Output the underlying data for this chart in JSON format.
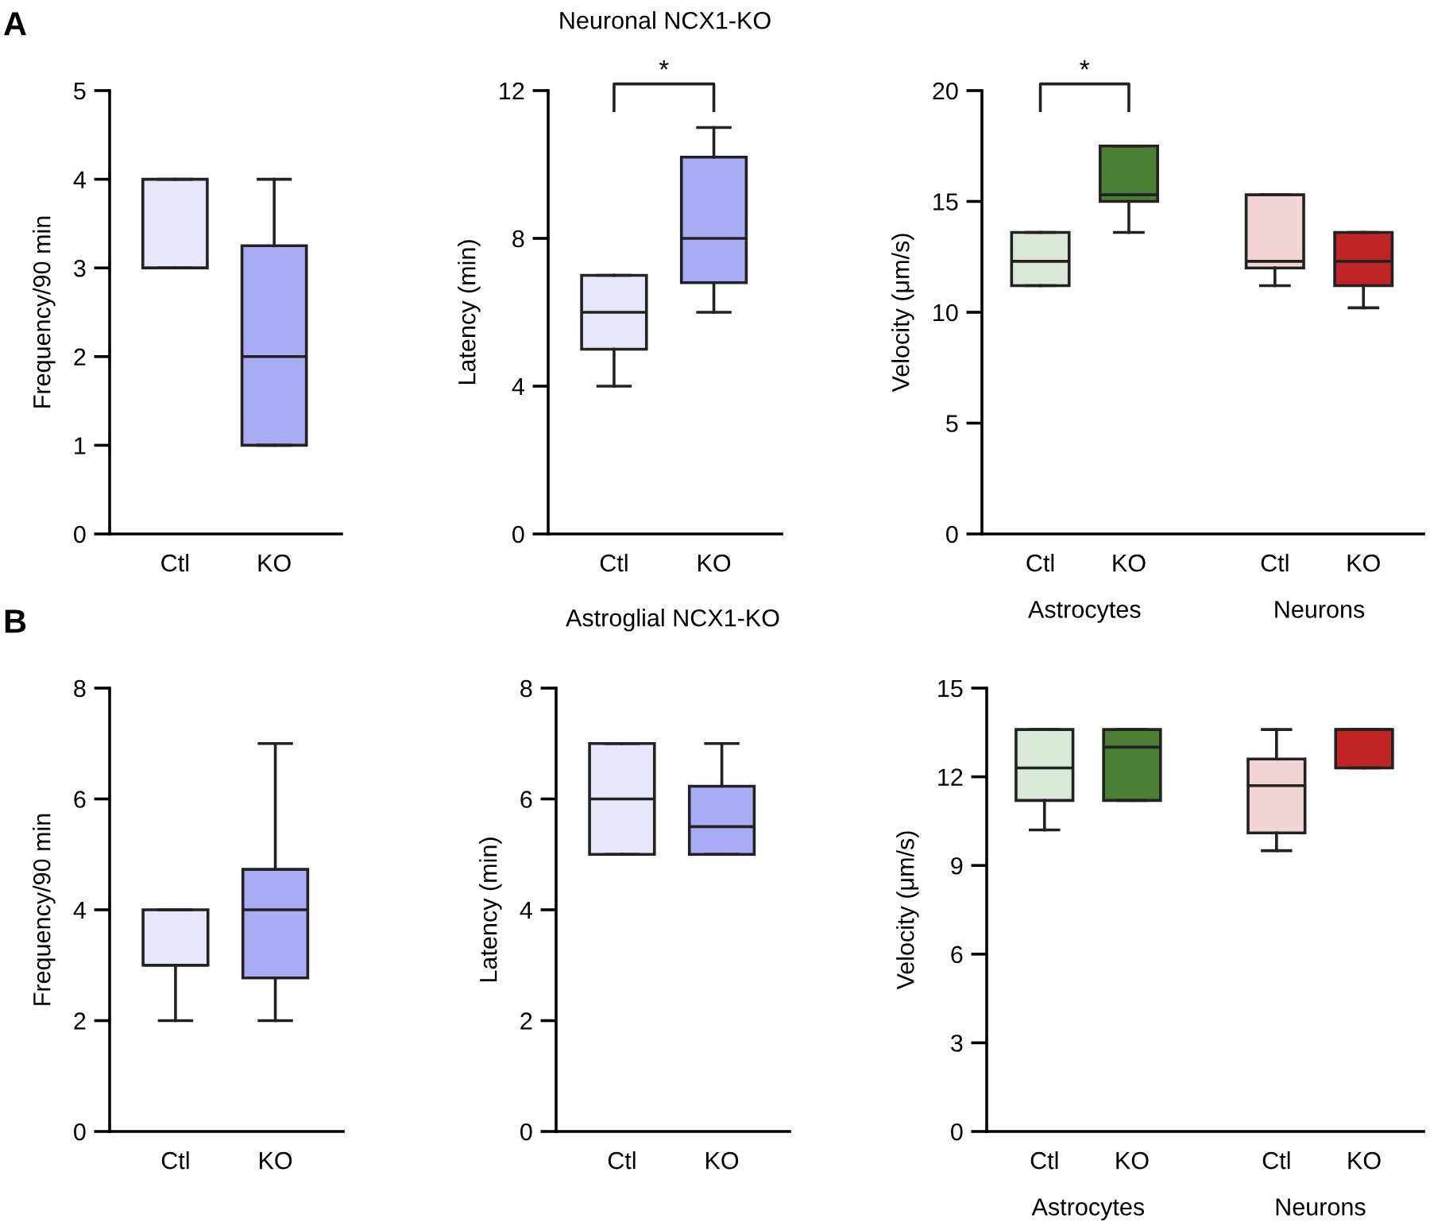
{
  "chart_data": [
    {
      "type": "box",
      "ylabel": "Frequency/90 min",
      "categories": [
        "Ctl",
        "KO"
      ],
      "colors": [
        "#e6e8fa",
        "#a7acf5"
      ],
      "ylim": [
        0,
        5
      ],
      "yticks": [
        0,
        1,
        2,
        3,
        4,
        5
      ],
      "annotations": [
        "A"
      ],
      "boxes": [
        {
          "low": 3,
          "q1": 3,
          "median": 3,
          "q3": 4,
          "high": 4
        },
        {
          "low": 1,
          "q1": 1,
          "median": 2,
          "q3": 3.25,
          "high": 4
        }
      ]
    },
    {
      "type": "box",
      "title": "Neuronal NCX1-KO",
      "ylabel": "Latency (min)",
      "categories": [
        "Ctl",
        "KO"
      ],
      "colors": [
        "#e6e8fa",
        "#a7acf5"
      ],
      "ylim": [
        0,
        12
      ],
      "yticks": [
        0,
        4,
        8,
        12
      ],
      "annotations": [
        {
          "text": "*"
        }
      ],
      "boxes": [
        {
          "low": 4,
          "q1": 5,
          "median": 6,
          "q3": 7,
          "high": 7
        },
        {
          "low": 6,
          "q1": 6.8,
          "median": 8,
          "q3": 10.2,
          "high": 11
        }
      ]
    },
    {
      "type": "box",
      "ylabel": "Velocity (μm/s)",
      "categories": [
        "Ctl",
        "KO",
        "Ctl",
        "KO"
      ],
      "colors": [
        "#d9e8d8",
        "#4b7f34",
        "#f2d4d6",
        "#c12424"
      ],
      "ylim": [
        0,
        20
      ],
      "yticks": [
        0,
        5,
        10,
        15,
        20
      ],
      "annotations": [
        {
          "text": "*"
        },
        "Astrocytes",
        "Neurons"
      ],
      "boxes": [
        {
          "low": 11.2,
          "q1": 11.2,
          "median": 12.3,
          "q3": 13.6,
          "high": 13.6
        },
        {
          "low": 13.6,
          "q1": 15.0,
          "median": 15.3,
          "q3": 17.5,
          "high": 17.5
        },
        {
          "low": 11.2,
          "q1": 12.0,
          "median": 12.3,
          "q3": 15.3,
          "high": 15.3
        },
        {
          "low": 10.2,
          "q1": 11.2,
          "median": 12.3,
          "q3": 13.6,
          "high": 13.6
        }
      ]
    },
    {
      "type": "box",
      "ylabel": "Frequency/90 min",
      "categories": [
        "Ctl",
        "KO"
      ],
      "colors": [
        "#e6e8fa",
        "#a7acf5"
      ],
      "ylim": [
        0,
        8
      ],
      "yticks": [
        0,
        2,
        4,
        6,
        8
      ],
      "annotations": [
        "B"
      ],
      "boxes": [
        {
          "low": 2,
          "q1": 3,
          "median": 3,
          "q3": 4,
          "high": 4
        },
        {
          "low": 2,
          "q1": 2.77,
          "median": 4,
          "q3": 4.73,
          "high": 7
        }
      ]
    },
    {
      "type": "box",
      "title": "Astroglial NCX1-KO",
      "ylabel": "Latency (min)",
      "categories": [
        "Ctl",
        "KO"
      ],
      "colors": [
        "#e6e8fa",
        "#a7acf5"
      ],
      "ylim": [
        0,
        8
      ],
      "yticks": [
        0,
        2,
        4,
        6,
        8
      ],
      "boxes": [
        {
          "low": 5,
          "q1": 5,
          "median": 6,
          "q3": 7,
          "high": 7
        },
        {
          "low": 5,
          "q1": 5,
          "median": 5.5,
          "q3": 6.23,
          "high": 7
        }
      ]
    },
    {
      "type": "box",
      "ylabel": "Velocity (μm/s)",
      "categories": [
        "Ctl",
        "KO",
        "Ctl",
        "KO"
      ],
      "colors": [
        "#d9e8d8",
        "#4b7f34",
        "#f2d4d6",
        "#c12424"
      ],
      "ylim": [
        0,
        15
      ],
      "yticks": [
        0,
        3,
        6,
        9,
        12,
        15
      ],
      "annotations": [
        "Astrocytes",
        "Neurons"
      ],
      "boxes": [
        {
          "low": 10.2,
          "q1": 11.2,
          "median": 12.3,
          "q3": 13.6,
          "high": 13.6
        },
        {
          "low": 11.2,
          "q1": 11.2,
          "median": 13.0,
          "q3": 13.6,
          "high": 13.6
        },
        {
          "low": 9.5,
          "q1": 10.1,
          "median": 11.7,
          "q3": 12.6,
          "high": 13.6
        },
        {
          "low": 12.3,
          "q1": 12.3,
          "median": 13.6,
          "q3": 13.6,
          "high": 13.6
        }
      ]
    }
  ]
}
